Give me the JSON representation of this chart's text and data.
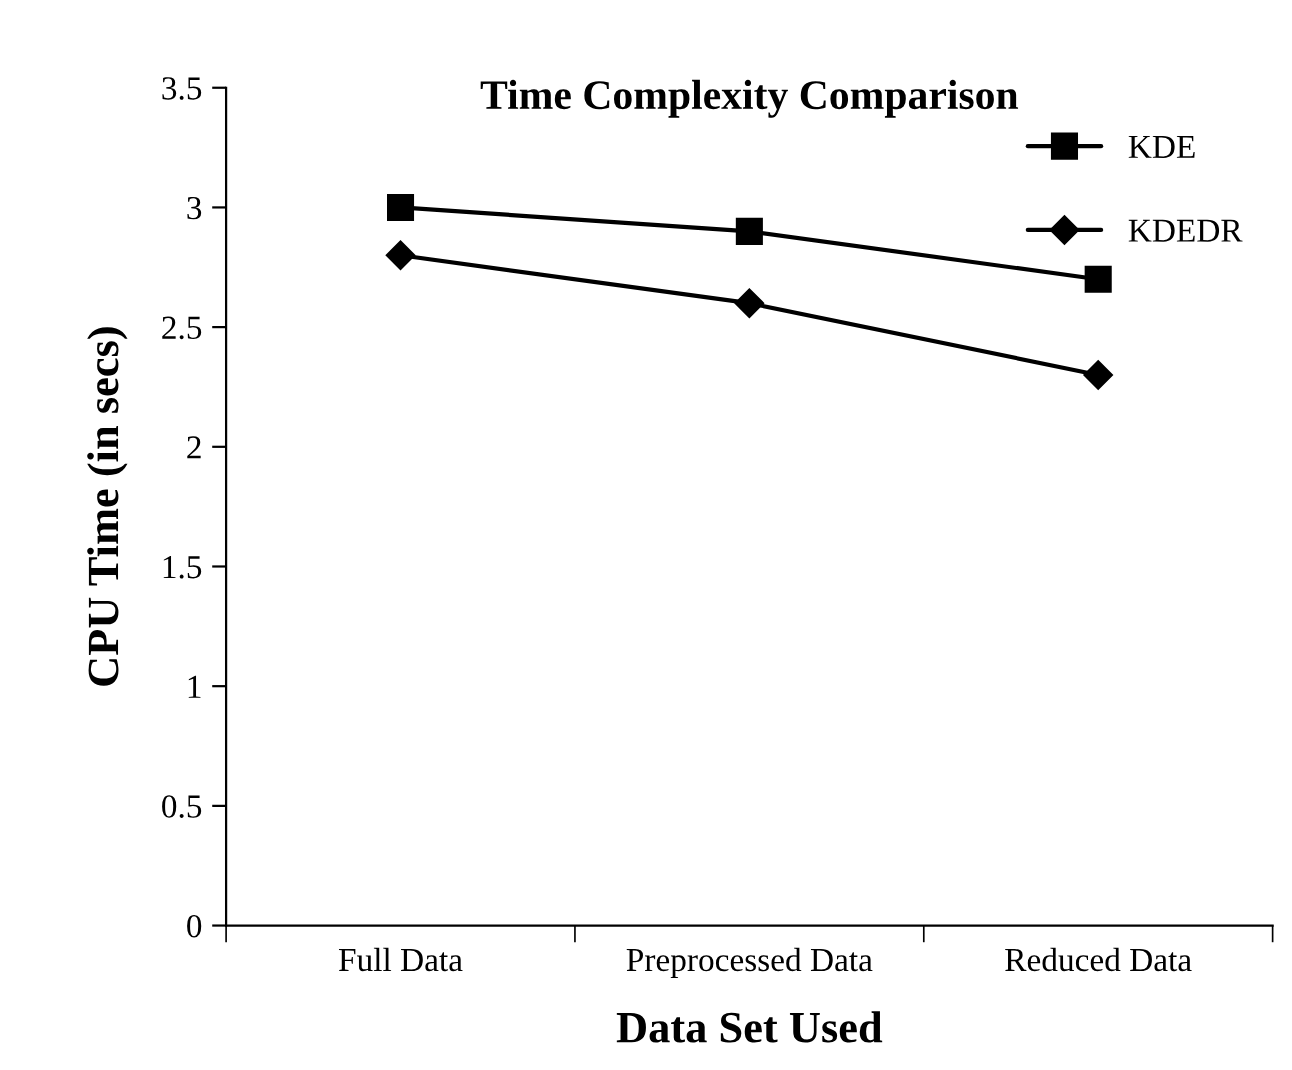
{
  "chart_data": {
    "type": "line",
    "title": "Time Complexity Comparison",
    "xlabel": "Data Set Used",
    "ylabel": "CPU Time (in secs)",
    "categories": [
      "Full Data",
      "Preprocessed Data",
      "Reduced Data"
    ],
    "series": [
      {
        "name": "KDE",
        "color": "#000000",
        "marker": "square",
        "values": [
          3.0,
          2.9,
          2.7
        ]
      },
      {
        "name": "KDEDR",
        "color": "#000000",
        "marker": "diamond",
        "values": [
          2.8,
          2.6,
          2.3
        ]
      }
    ],
    "ylim": [
      0,
      3.5
    ],
    "yticks": [
      0,
      0.5,
      1,
      1.5,
      2,
      2.5,
      3,
      3.5
    ],
    "grid": false,
    "legend": "top right"
  }
}
